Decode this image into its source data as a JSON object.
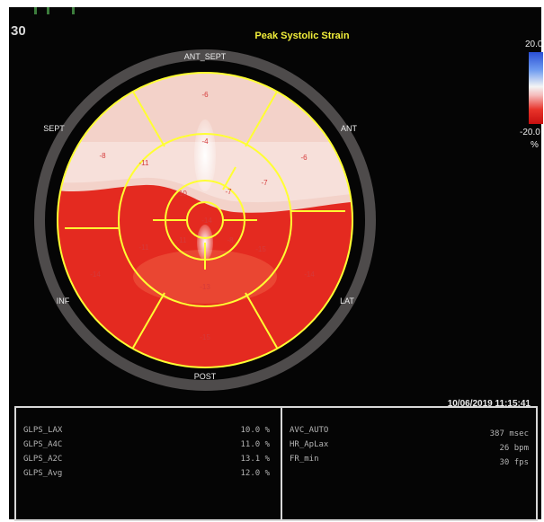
{
  "header": {
    "title": "Peak Systolic Strain",
    "corner_number": "30"
  },
  "scale": {
    "max": "20.0",
    "min": "-20.0",
    "unit": "%"
  },
  "bullseye": {
    "labels": [
      "ANT_SEPT",
      "ANT",
      "LAT",
      "POST",
      "INF",
      "SEPT"
    ],
    "values": [
      "-6",
      "-6",
      "-7",
      "-14",
      "-15",
      "-14",
      "-15",
      "-11",
      "-8",
      "-11",
      "-13",
      "-4",
      "-7",
      "-8",
      "-11",
      "-10",
      "-14"
    ]
  },
  "timestamp": "10/06/2019 11:15:41",
  "panel": {
    "left": [
      {
        "name": "GLPS_LAX",
        "value": "10.0 %"
      },
      {
        "name": "GLPS_A4C",
        "value": "11.0 %"
      },
      {
        "name": "GLPS_A2C",
        "value": "13.1 %"
      },
      {
        "name": "GLPS_Avg",
        "value": "12.0 %"
      }
    ],
    "right": [
      {
        "name": "AVC_AUTO",
        "value": "387 msec"
      },
      {
        "name": "HR_ApLax",
        "value": "26 bpm"
      },
      {
        "name": "FR_min",
        "value": "30 fps"
      }
    ]
  },
  "colors": {
    "title": "#f2ef3a",
    "grid": "#ffff33",
    "segment_light": "#f6dcd6",
    "segment_red": "#e3271e"
  }
}
